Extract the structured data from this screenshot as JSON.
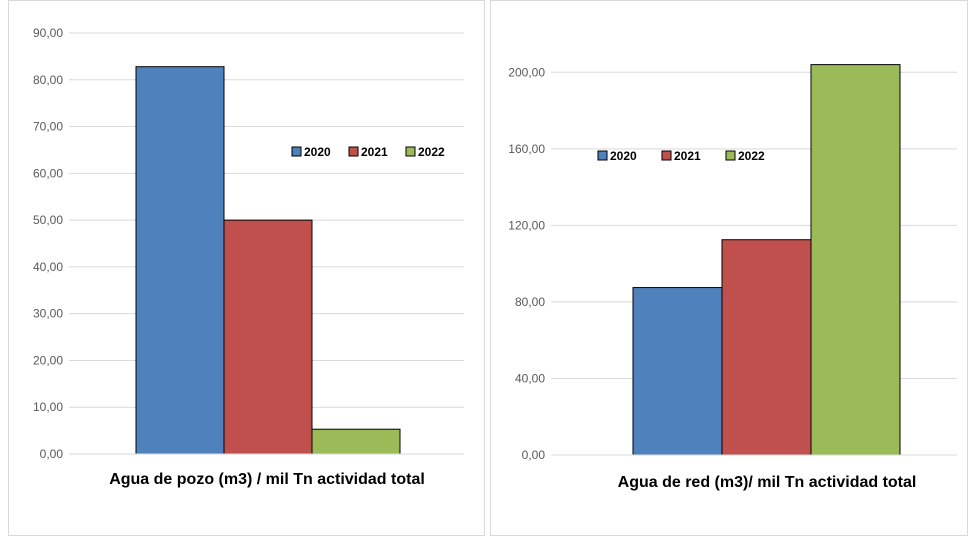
{
  "chart_data": [
    {
      "type": "bar",
      "title": "",
      "xlabel": "Agua de pozo (m3) / mil Tn actividad total",
      "ylabel": "",
      "ylim": [
        0,
        90
      ],
      "ytick_step": 10,
      "yticks": [
        "0,00",
        "10,00",
        "20,00",
        "30,00",
        "40,00",
        "50,00",
        "60,00",
        "70,00",
        "80,00",
        "90,00"
      ],
      "grid": true,
      "legend_position": "right",
      "series": [
        {
          "name": "2020",
          "values": [
            82.8
          ],
          "color": "#4F81BD"
        },
        {
          "name": "2021",
          "values": [
            50.0
          ],
          "color": "#C0504D"
        },
        {
          "name": "2022",
          "values": [
            5.3
          ],
          "color": "#9BBB59"
        }
      ]
    },
    {
      "type": "bar",
      "title": "",
      "xlabel": "Agua de red (m3)/ mil Tn actividad total",
      "ylabel": "",
      "ylim": [
        0,
        220
      ],
      "ytick_step": 40,
      "yticks": [
        "0,00",
        "40,00",
        "80,00",
        "120,00",
        "160,00",
        "200,00"
      ],
      "grid": true,
      "legend_position": "top-left",
      "series": [
        {
          "name": "2020",
          "values": [
            87.5
          ],
          "color": "#4F81BD"
        },
        {
          "name": "2021",
          "values": [
            112.5
          ],
          "color": "#C0504D"
        },
        {
          "name": "2022",
          "values": [
            204.0
          ],
          "color": "#9BBB59"
        }
      ]
    }
  ]
}
